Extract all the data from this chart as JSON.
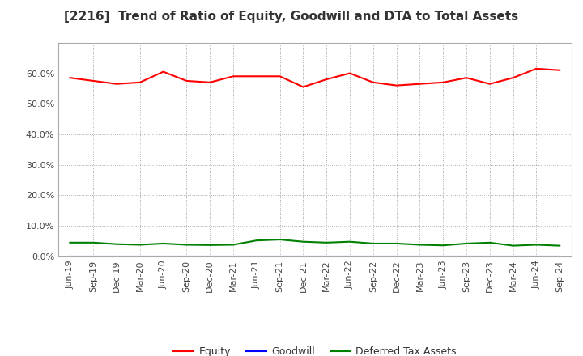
{
  "title": "[2216]  Trend of Ratio of Equity, Goodwill and DTA to Total Assets",
  "x_labels": [
    "Jun-19",
    "Sep-19",
    "Dec-19",
    "Mar-20",
    "Jun-20",
    "Sep-20",
    "Dec-20",
    "Mar-21",
    "Jun-21",
    "Sep-21",
    "Dec-21",
    "Mar-22",
    "Jun-22",
    "Sep-22",
    "Dec-22",
    "Mar-23",
    "Jun-23",
    "Sep-23",
    "Dec-23",
    "Mar-24",
    "Jun-24",
    "Sep-24"
  ],
  "equity": [
    58.5,
    57.5,
    56.5,
    57.0,
    60.5,
    57.5,
    57.0,
    59.0,
    59.0,
    59.0,
    55.5,
    58.0,
    60.0,
    57.0,
    56.0,
    56.5,
    57.0,
    58.5,
    56.5,
    58.5,
    61.5,
    61.0
  ],
  "goodwill": [
    0.0,
    0.0,
    0.0,
    0.0,
    0.0,
    0.0,
    0.0,
    0.0,
    0.0,
    0.0,
    0.0,
    0.0,
    0.0,
    0.0,
    0.0,
    0.0,
    0.0,
    0.0,
    0.0,
    0.0,
    0.0,
    0.0
  ],
  "dta": [
    4.5,
    4.5,
    4.0,
    3.8,
    4.2,
    3.8,
    3.7,
    3.8,
    5.2,
    5.5,
    4.8,
    4.5,
    4.8,
    4.2,
    4.2,
    3.8,
    3.6,
    4.2,
    4.5,
    3.5,
    3.8,
    3.5
  ],
  "equity_color": "#FF0000",
  "goodwill_color": "#0000FF",
  "dta_color": "#008000",
  "ylim": [
    0,
    70
  ],
  "yticks": [
    0,
    10,
    20,
    30,
    40,
    50,
    60
  ],
  "legend_labels": [
    "Equity",
    "Goodwill",
    "Deferred Tax Assets"
  ],
  "background_color": "#FFFFFF",
  "plot_bg_color": "#FFFFFF",
  "grid_color": "#aaaaaa",
  "title_fontsize": 11,
  "tick_fontsize": 8,
  "legend_fontsize": 9
}
